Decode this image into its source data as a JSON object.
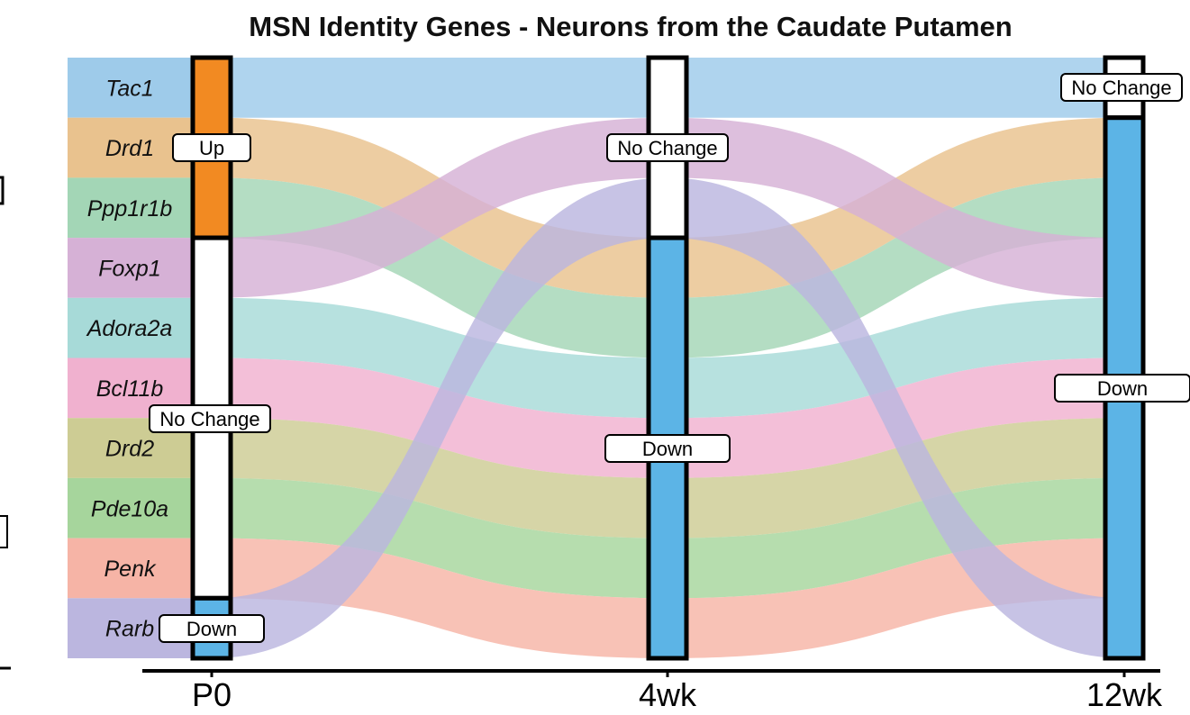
{
  "chart_data": {
    "type": "alluvial",
    "title": "MSN Identity Genes - Neurons from the Caudate Putamen",
    "time_points": [
      "P0",
      "4wk",
      "12wk"
    ],
    "genes": [
      {
        "name": "Tac1",
        "color": "#9ecbea",
        "states": [
          "Up",
          "No Change",
          "No Change"
        ]
      },
      {
        "name": "Drd1",
        "color": "#e9c28e",
        "states": [
          "Up",
          "Down",
          "Down"
        ]
      },
      {
        "name": "Ppp1r1b",
        "color": "#a3d6b6",
        "states": [
          "Up",
          "Down",
          "Down"
        ]
      },
      {
        "name": "Foxp1",
        "color": "#d6b1d6",
        "states": [
          "No Change",
          "No Change",
          "Down"
        ]
      },
      {
        "name": "Adora2a",
        "color": "#a7dad8",
        "states": [
          "No Change",
          "Down",
          "Down"
        ]
      },
      {
        "name": "Bcl11b",
        "color": "#f0b1cf",
        "states": [
          "No Change",
          "Down",
          "Down"
        ]
      },
      {
        "name": "Drd2",
        "color": "#cdcc94",
        "states": [
          "No Change",
          "Down",
          "Down"
        ]
      },
      {
        "name": "Pde10a",
        "color": "#a6d59c",
        "states": [
          "No Change",
          "Down",
          "Down"
        ]
      },
      {
        "name": "Penk",
        "color": "#f6b4a6",
        "states": [
          "No Change",
          "Down",
          "Down"
        ]
      },
      {
        "name": "Rarb",
        "color": "#bbb6df",
        "states": [
          "Down",
          "No Change",
          "Down"
        ]
      }
    ],
    "state_order": [
      "Up",
      "No Change",
      "Down"
    ],
    "state_colors": {
      "Up": "#f28a22",
      "No Change": "#ffffff",
      "Down": "#5cb4e6"
    }
  }
}
